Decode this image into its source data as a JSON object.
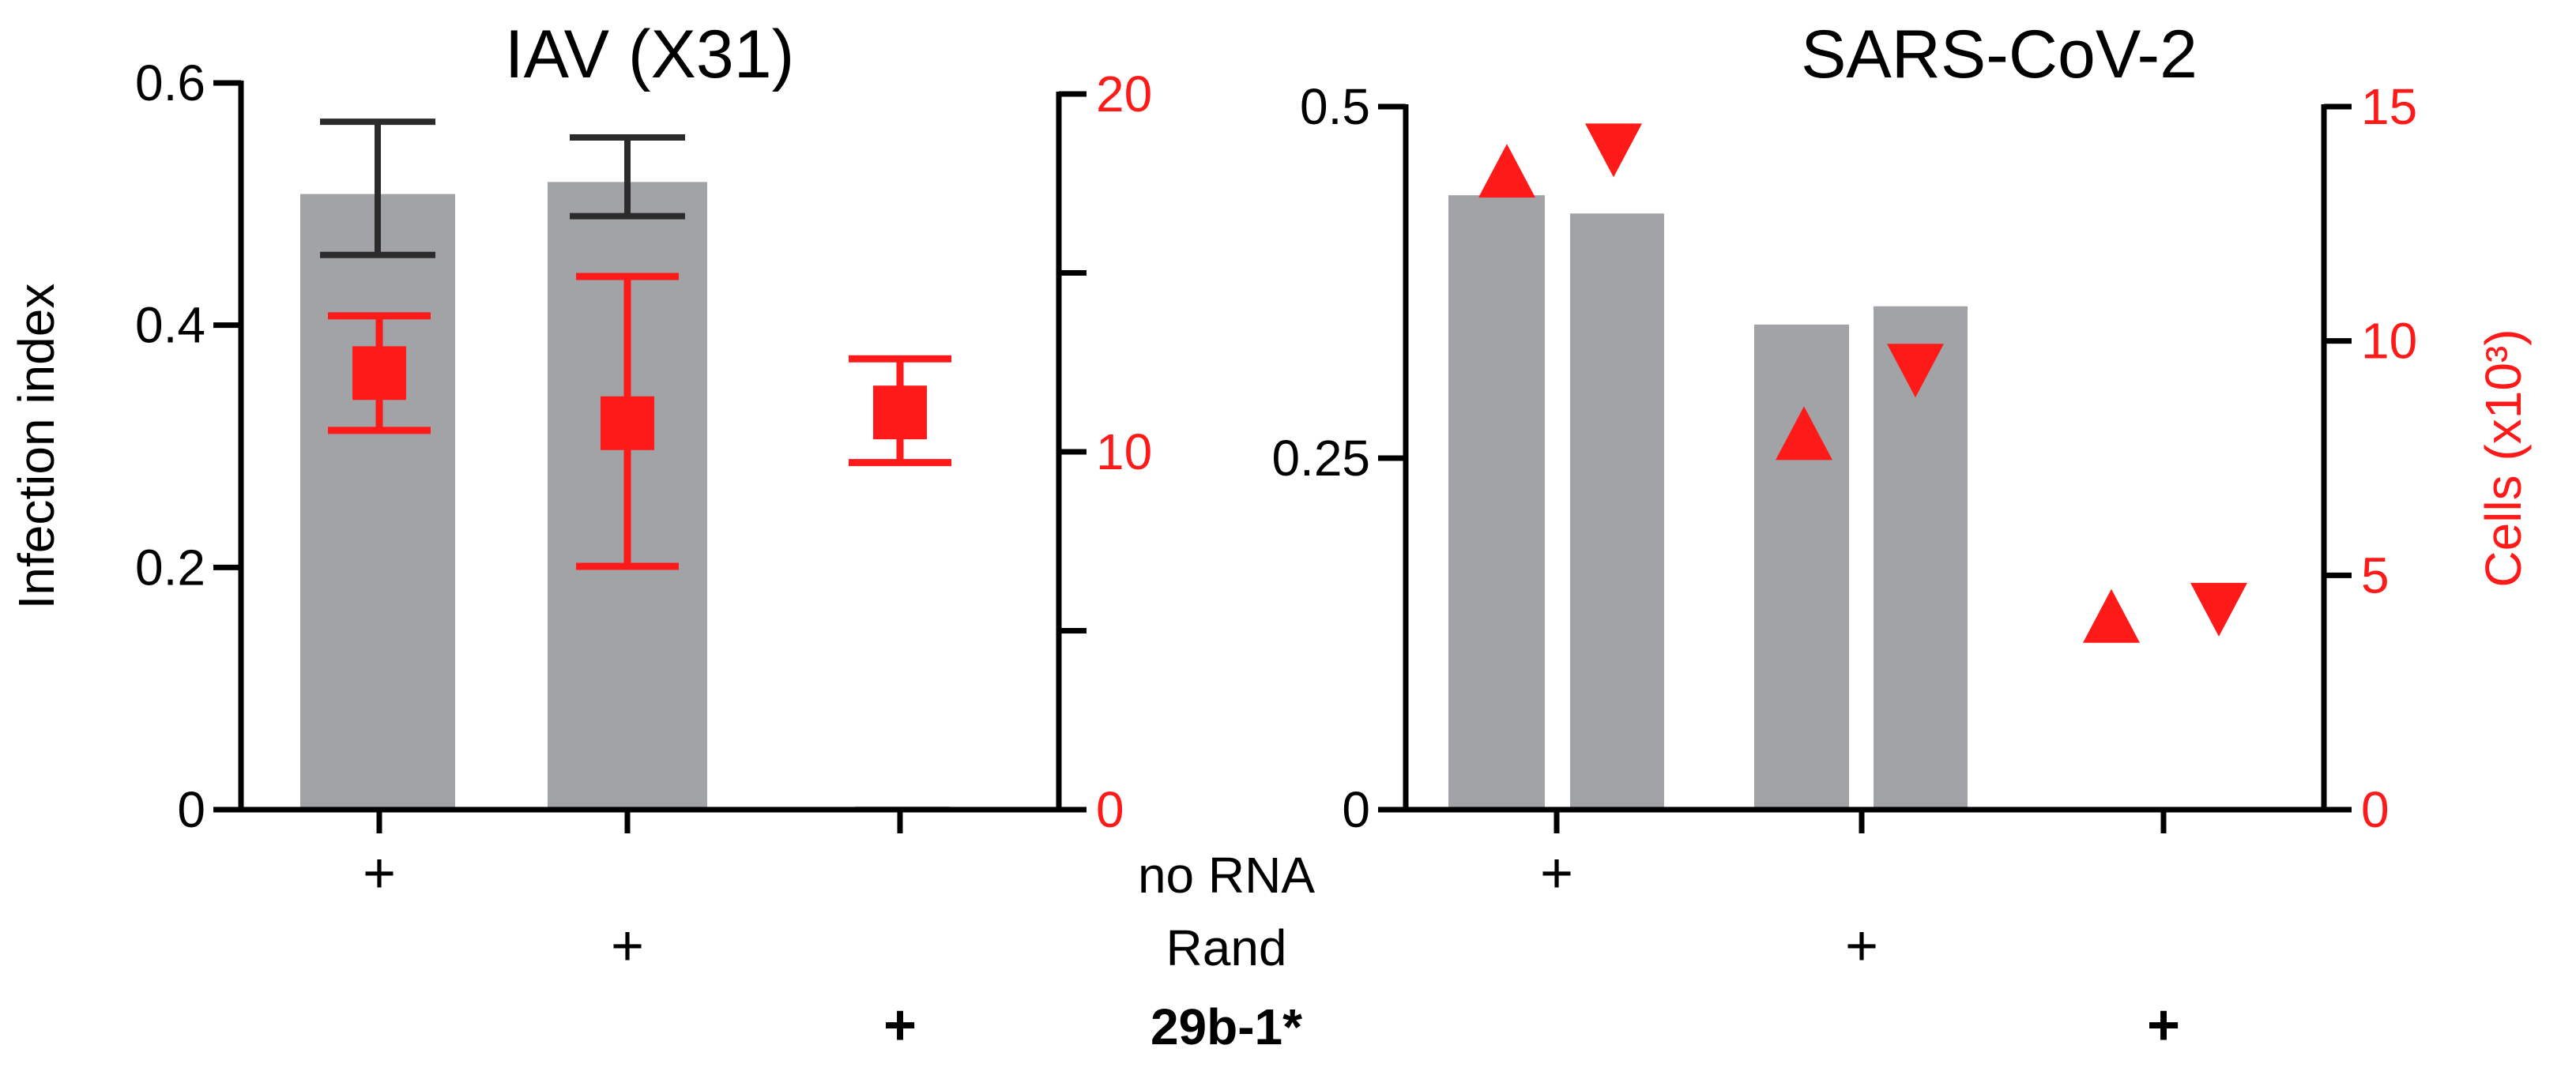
{
  "colors": {
    "bar": "#a2a3a7",
    "axis": "#000000",
    "cells": "#ff1a1a",
    "bar_error": "#2b2b2b"
  },
  "rows": [
    {
      "label": "no RNA",
      "bold": false
    },
    {
      "label": "Rand",
      "bold": false
    },
    {
      "label": "29b-1*",
      "bold": true
    }
  ],
  "plus_symbol": "+",
  "chart_data": [
    {
      "type": "bar",
      "title": "IAV (X31)",
      "ylabel": "Infection index",
      "y2label": "",
      "ylim": [
        0,
        0.6
      ],
      "y2lim": [
        0,
        20
      ],
      "yticks": [
        "0",
        "0.2",
        "0.4",
        "0.6"
      ],
      "y2ticks": [
        "0",
        "10",
        "20"
      ],
      "groups": [
        "no RNA",
        "Rand",
        "29b-1*"
      ],
      "bars": [
        {
          "group": "no RNA",
          "value": 0.505,
          "err_low": 0.458,
          "err_high": 0.568
        },
        {
          "group": "Rand",
          "value": 0.515,
          "err_low": 0.49,
          "err_high": 0.555
        },
        {
          "group": "29b-1*",
          "value": 0.0
        }
      ],
      "cells": [
        {
          "group": "no RNA",
          "value": 12.2,
          "err_low": 10.6,
          "err_high": 13.8,
          "marker": "square"
        },
        {
          "group": "Rand",
          "value": 10.8,
          "err_low": 6.8,
          "err_high": 14.9,
          "marker": "square"
        },
        {
          "group": "29b-1*",
          "value": 11.1,
          "err_low": 9.7,
          "err_high": 12.6,
          "marker": "square"
        }
      ]
    },
    {
      "type": "bar",
      "title": "SARS-CoV-2",
      "ylabel": "",
      "y2label": "Cells (x10³)",
      "ylim": [
        0,
        0.5
      ],
      "y2lim": [
        0,
        15
      ],
      "yticks": [
        "0",
        "0.25",
        "0.5"
      ],
      "y2ticks": [
        "0",
        "5",
        "10",
        "15"
      ],
      "groups": [
        "no RNA",
        "Rand",
        "29b-1*"
      ],
      "bars": [
        {
          "group": "no RNA",
          "value": 0.437
        },
        {
          "group": "no RNA",
          "value": 0.424
        },
        {
          "group": "Rand",
          "value": 0.345
        },
        {
          "group": "Rand",
          "value": 0.358
        }
      ],
      "cells": [
        {
          "group": "no RNA",
          "value": 13.6,
          "marker": "triangle-up"
        },
        {
          "group": "no RNA",
          "value": 14.1,
          "marker": "triangle-down"
        },
        {
          "group": "Rand",
          "value": 8.0,
          "marker": "triangle-up"
        },
        {
          "group": "Rand",
          "value": 9.4,
          "marker": "triangle-down"
        },
        {
          "group": "29b-1*",
          "value": 4.1,
          "marker": "triangle-up"
        },
        {
          "group": "29b-1*",
          "value": 4.3,
          "marker": "triangle-down"
        }
      ]
    }
  ]
}
